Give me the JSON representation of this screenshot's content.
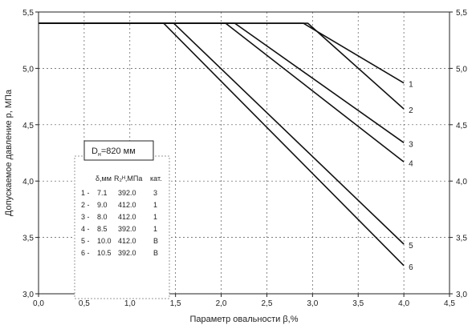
{
  "chart_data": {
    "type": "line",
    "xlabel": "Параметр овальности β,%",
    "ylabel": "Допускаемое давление p, МПа",
    "xlim": [
      0.0,
      4.5
    ],
    "ylim": [
      3.0,
      5.5
    ],
    "x_ticks": [
      "0,0",
      "0,5",
      "1,0",
      "1,5",
      "2,0",
      "2,5",
      "3,0",
      "3,5",
      "4,0",
      "4,5"
    ],
    "y_ticks": [
      "3,0",
      "3,5",
      "4,0",
      "4,5",
      "5,0",
      "5,5"
    ],
    "grid": true,
    "series": [
      {
        "name": "1",
        "x": [
          0.0,
          2.9,
          4.0
        ],
        "y": [
          5.4,
          5.4,
          4.87
        ]
      },
      {
        "name": "2",
        "x": [
          0.0,
          2.95,
          4.0
        ],
        "y": [
          5.4,
          5.4,
          4.64
        ]
      },
      {
        "name": "3",
        "x": [
          0.0,
          2.15,
          4.0
        ],
        "y": [
          5.4,
          5.4,
          4.34
        ]
      },
      {
        "name": "4",
        "x": [
          0.0,
          2.05,
          4.0
        ],
        "y": [
          5.4,
          5.4,
          4.17
        ]
      },
      {
        "name": "5",
        "x": [
          0.0,
          1.48,
          4.0
        ],
        "y": [
          5.4,
          5.4,
          3.44
        ]
      },
      {
        "name": "6",
        "x": [
          0.0,
          1.37,
          4.0
        ],
        "y": [
          5.4,
          5.4,
          3.25
        ]
      }
    ],
    "legend": {
      "placement": "center-left",
      "title": "D",
      "title_sub": "н",
      "title_rest": "=820 мм",
      "columns": [
        "δ,мм",
        "R₂ᴴ,МПа",
        "кат."
      ],
      "rows": [
        [
          "1 -",
          "7.1",
          "392.0",
          "3"
        ],
        [
          "2 -",
          "9.0",
          "412.0",
          "1"
        ],
        [
          "3 -",
          "8.0",
          "412.0",
          "1"
        ],
        [
          "4 -",
          "8.5",
          "392.0",
          "1"
        ],
        [
          "5 -",
          "10.0",
          "412.0",
          "B"
        ],
        [
          "6 -",
          "10.5",
          "392.0",
          "B"
        ]
      ]
    }
  }
}
